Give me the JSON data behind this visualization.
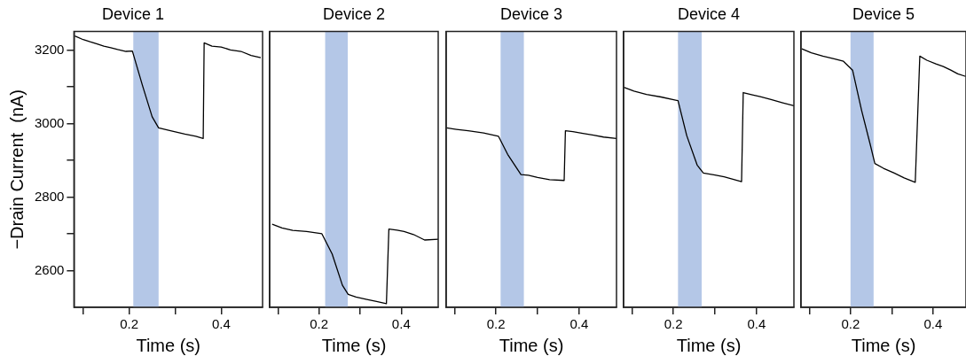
{
  "chart_data": [
    {
      "type": "line",
      "title": "Device 1",
      "xlabel": "Time (s)",
      "ylabel": "−Drain Current  (nA)",
      "xlim": [
        0.08,
        0.49
      ],
      "ylim": [
        2500,
        3250
      ],
      "xticks": [
        {
          "value": 0.1,
          "label": null
        },
        {
          "value": 0.2,
          "label": "0.2"
        },
        {
          "value": 0.3,
          "label": null
        },
        {
          "value": 0.4,
          "label": "0.4"
        }
      ],
      "yticks": [
        {
          "value": 2600,
          "label": "2600"
        },
        {
          "value": 2700,
          "label": null
        },
        {
          "value": 2800,
          "label": "2800"
        },
        {
          "value": 2900,
          "label": null
        },
        {
          "value": 3000,
          "label": "3000"
        },
        {
          "value": 3100,
          "label": null
        },
        {
          "value": 3200,
          "label": "3200"
        }
      ],
      "grid": false,
      "marker": "none",
      "line_style": "solid",
      "bands": [
        {
          "axis": "x",
          "from": 0.209,
          "to": 0.264,
          "color": "#b4c7e7"
        }
      ],
      "series": [
        {
          "color": "#000000",
          "x": [
            0.082,
            0.1,
            0.115,
            0.129,
            0.145,
            0.16,
            0.175,
            0.193,
            0.207,
            0.229,
            0.25,
            0.264,
            0.29,
            0.321,
            0.345,
            0.361,
            0.363,
            0.38,
            0.4,
            0.42,
            0.443,
            0.465,
            0.486
          ],
          "values": [
            3238,
            3228,
            3222,
            3217,
            3210,
            3206,
            3201,
            3196,
            3197,
            3103,
            3018,
            2988,
            2980,
            2971,
            2965,
            2959,
            3219,
            3210,
            3208,
            3200,
            3196,
            3185,
            3179
          ]
        }
      ]
    },
    {
      "type": "line",
      "title": "Device 2",
      "xlabel": "Time (s)",
      "xlim": [
        0.08,
        0.49
      ],
      "ylim": [
        2500,
        3250
      ],
      "tick_labels": "x",
      "xticks": [
        {
          "value": 0.1,
          "label": null
        },
        {
          "value": 0.2,
          "label": "0.2"
        },
        {
          "value": 0.3,
          "label": null
        },
        {
          "value": 0.4,
          "label": "0.4"
        }
      ],
      "grid": false,
      "marker": "none",
      "line_style": "solid",
      "bands": [
        {
          "axis": "x",
          "from": 0.215,
          "to": 0.27,
          "color": "#b4c7e7"
        }
      ],
      "series": [
        {
          "color": "#000000",
          "x": [
            0.086,
            0.11,
            0.136,
            0.17,
            0.207,
            0.232,
            0.257,
            0.271,
            0.29,
            0.314,
            0.34,
            0.364,
            0.37,
            0.39,
            0.407,
            0.43,
            0.457,
            0.49
          ],
          "values": [
            2726,
            2716,
            2709,
            2706,
            2700,
            2645,
            2560,
            2535,
            2528,
            2522,
            2516,
            2510,
            2713,
            2710,
            2706,
            2698,
            2683,
            2685
          ]
        }
      ]
    },
    {
      "type": "line",
      "title": "Device 3",
      "xlabel": "Time (s)",
      "xlim": [
        0.08,
        0.49
      ],
      "ylim": [
        2500,
        3250
      ],
      "tick_labels": "x",
      "xticks": [
        {
          "value": 0.1,
          "label": null
        },
        {
          "value": 0.2,
          "label": "0.2"
        },
        {
          "value": 0.3,
          "label": null
        },
        {
          "value": 0.4,
          "label": "0.4"
        }
      ],
      "grid": false,
      "marker": "none",
      "line_style": "solid",
      "bands": [
        {
          "axis": "x",
          "from": 0.211,
          "to": 0.267,
          "color": "#b4c7e7"
        }
      ],
      "series": [
        {
          "color": "#000000",
          "x": [
            0.081,
            0.105,
            0.133,
            0.17,
            0.206,
            0.228,
            0.26,
            0.278,
            0.3,
            0.329,
            0.364,
            0.367,
            0.385,
            0.409,
            0.435,
            0.459,
            0.49
          ],
          "values": [
            2988,
            2984,
            2980,
            2974,
            2965,
            2916,
            2861,
            2859,
            2853,
            2847,
            2845,
            2980,
            2978,
            2973,
            2968,
            2963,
            2959
          ]
        }
      ]
    },
    {
      "type": "line",
      "title": "Device 4",
      "xlabel": "Time (s)",
      "xlim": [
        0.08,
        0.49
      ],
      "ylim": [
        2500,
        3250
      ],
      "tick_labels": "x",
      "xticks": [
        {
          "value": 0.1,
          "label": null
        },
        {
          "value": 0.2,
          "label": "0.2"
        },
        {
          "value": 0.3,
          "label": null
        },
        {
          "value": 0.4,
          "label": "0.4"
        }
      ],
      "grid": false,
      "marker": "none",
      "line_style": "solid",
      "bands": [
        {
          "axis": "x",
          "from": 0.211,
          "to": 0.268,
          "color": "#b4c7e7"
        }
      ],
      "series": [
        {
          "color": "#000000",
          "x": [
            0.081,
            0.105,
            0.135,
            0.17,
            0.211,
            0.232,
            0.257,
            0.272,
            0.3,
            0.322,
            0.345,
            0.364,
            0.368,
            0.39,
            0.409,
            0.435,
            0.463,
            0.49
          ],
          "values": [
            3098,
            3088,
            3079,
            3072,
            3062,
            2967,
            2887,
            2865,
            2860,
            2855,
            2848,
            2842,
            3084,
            3078,
            3073,
            3065,
            3056,
            3048
          ]
        }
      ]
    },
    {
      "type": "line",
      "title": "Device 5",
      "xlabel": "Time (s)",
      "xlim": [
        0.08,
        0.48
      ],
      "ylim": [
        2500,
        3250
      ],
      "tick_labels": "x",
      "xticks": [
        {
          "value": 0.1,
          "label": null
        },
        {
          "value": 0.2,
          "label": "0.2"
        },
        {
          "value": 0.3,
          "label": null
        },
        {
          "value": 0.4,
          "label": "0.4"
        }
      ],
      "grid": false,
      "marker": "none",
      "line_style": "solid",
      "bands": [
        {
          "axis": "x",
          "from": 0.2,
          "to": 0.256,
          "color": "#b4c7e7"
        }
      ],
      "series": [
        {
          "color": "#000000",
          "x": [
            0.082,
            0.105,
            0.133,
            0.16,
            0.183,
            0.205,
            0.227,
            0.248,
            0.259,
            0.28,
            0.306,
            0.33,
            0.357,
            0.368,
            0.385,
            0.407,
            0.425,
            0.443,
            0.46,
            0.479
          ],
          "values": [
            3203,
            3192,
            3183,
            3176,
            3169,
            3145,
            3035,
            2942,
            2891,
            2878,
            2865,
            2852,
            2840,
            3183,
            3172,
            3162,
            3155,
            3145,
            3135,
            3128
          ]
        }
      ]
    }
  ]
}
